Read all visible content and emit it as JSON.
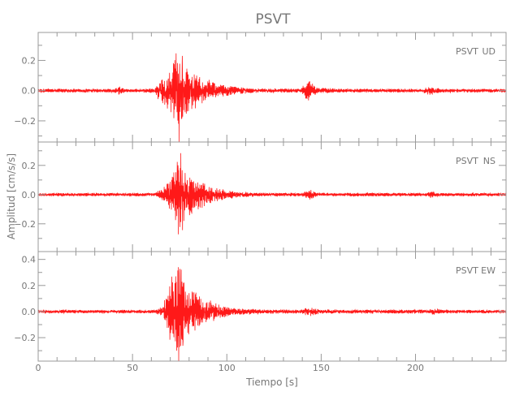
{
  "chart_data": {
    "type": "line",
    "title": "PSVT",
    "xlabel": "Tiempo [s]",
    "ylabel": "Amplitud [cm/s/s]",
    "xlim": [
      0,
      248
    ],
    "x_ticks": [
      0,
      50,
      100,
      150,
      200
    ],
    "x_minor_step": 10,
    "line_color": "#ff0000",
    "axis_color": "#999999",
    "grid": false,
    "panels": [
      {
        "station": "PSVT",
        "component": "UD",
        "ylim": [
          -0.34,
          0.385
        ],
        "y_ticks": [
          -0.2,
          0.0,
          0.2
        ],
        "y_tick_labels": [
          "-0.2",
          "0.0",
          "0.2"
        ],
        "envelope": [
          [
            0,
            0.012
          ],
          [
            40,
            0.012
          ],
          [
            43,
            0.03
          ],
          [
            46,
            0.012
          ],
          [
            62,
            0.015
          ],
          [
            64,
            0.08
          ],
          [
            70,
            0.18
          ],
          [
            75,
            0.36
          ],
          [
            78,
            0.16
          ],
          [
            85,
            0.1
          ],
          [
            95,
            0.05
          ],
          [
            105,
            0.025
          ],
          [
            115,
            0.014
          ],
          [
            139,
            0.014
          ],
          [
            143,
            0.07
          ],
          [
            148,
            0.02
          ],
          [
            160,
            0.012
          ],
          [
            204,
            0.012
          ],
          [
            208,
            0.035
          ],
          [
            213,
            0.012
          ],
          [
            248,
            0.012
          ]
        ]
      },
      {
        "station": "PSVT",
        "component": "NS",
        "ylim": [
          -0.39,
          0.36
        ],
        "y_ticks": [
          -0.2,
          0.0,
          0.2
        ],
        "y_tick_labels": [
          "-0.2",
          "0.0",
          "0.2"
        ],
        "envelope": [
          [
            0,
            0.01
          ],
          [
            62,
            0.012
          ],
          [
            66,
            0.04
          ],
          [
            71,
            0.12
          ],
          [
            75,
            0.36
          ],
          [
            78,
            0.16
          ],
          [
            85,
            0.1
          ],
          [
            95,
            0.045
          ],
          [
            105,
            0.022
          ],
          [
            115,
            0.013
          ],
          [
            140,
            0.012
          ],
          [
            144,
            0.035
          ],
          [
            148,
            0.012
          ],
          [
            205,
            0.012
          ],
          [
            208,
            0.022
          ],
          [
            212,
            0.011
          ],
          [
            248,
            0.011
          ]
        ]
      },
      {
        "station": "PSVT",
        "component": "EW",
        "ylim": [
          -0.38,
          0.46
        ],
        "y_ticks": [
          -0.2,
          0.0,
          0.2,
          0.4
        ],
        "y_tick_labels": [
          "-0.2",
          "0.0",
          "0.2",
          "0.4"
        ],
        "envelope": [
          [
            0,
            0.012
          ],
          [
            62,
            0.014
          ],
          [
            66,
            0.05
          ],
          [
            71,
            0.28
          ],
          [
            74.5,
            0.45
          ],
          [
            78,
            0.22
          ],
          [
            85,
            0.12
          ],
          [
            95,
            0.06
          ],
          [
            105,
            0.03
          ],
          [
            118,
            0.016
          ],
          [
            139,
            0.015
          ],
          [
            144,
            0.035
          ],
          [
            150,
            0.016
          ],
          [
            206,
            0.015
          ],
          [
            210,
            0.028
          ],
          [
            214,
            0.014
          ],
          [
            248,
            0.013
          ]
        ]
      }
    ]
  }
}
